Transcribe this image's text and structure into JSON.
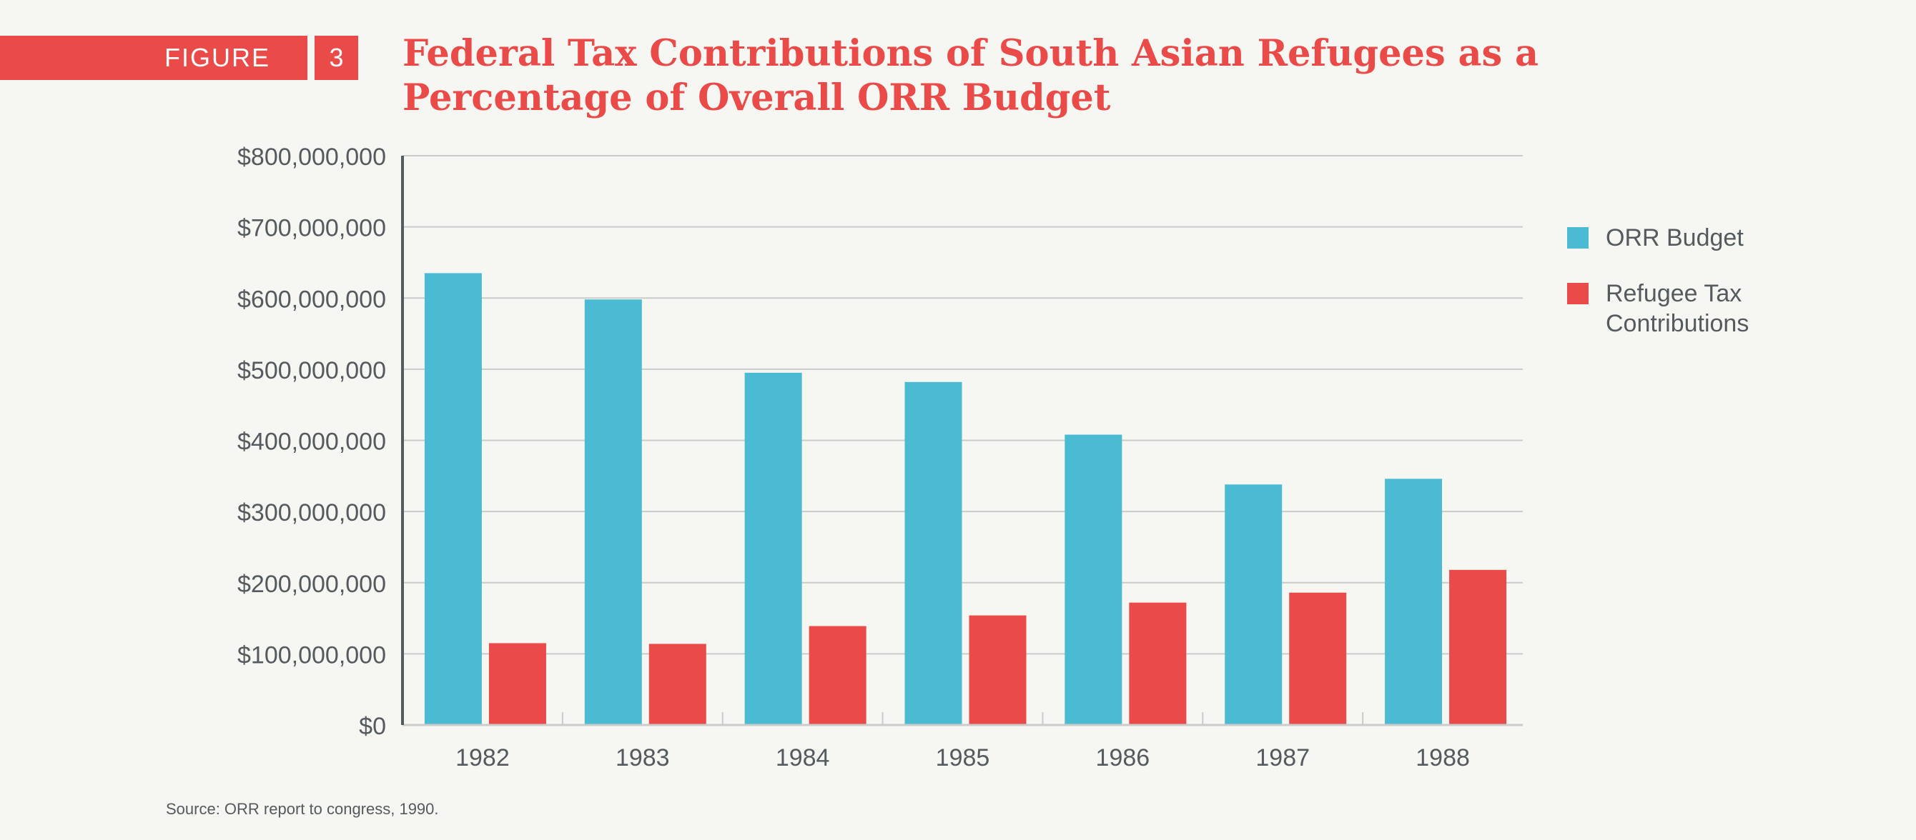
{
  "figure": {
    "label": "FIGURE",
    "number": "3"
  },
  "title": "Federal Tax Contributions of South Asian Refugees as a Percentage of Overall ORR Budget",
  "source": "Source: ORR report to congress, 1990.",
  "colors": {
    "accent": "#ea4b48",
    "orr_budget": "#4bbbd3",
    "refugee_tax": "#ea4b48",
    "text": "#555a5e",
    "grid": "#c9ccca"
  },
  "chart_data": {
    "type": "bar",
    "title": "Federal Tax Contributions of South Asian Refugees as a Percentage of Overall ORR Budget",
    "xlabel": "",
    "ylabel": "",
    "categories": [
      "1982",
      "1983",
      "1984",
      "1985",
      "1986",
      "1987",
      "1988"
    ],
    "series": [
      {
        "name": "ORR Budget",
        "values": [
          635000000,
          598000000,
          495000000,
          482000000,
          408000000,
          338000000,
          346000000
        ]
      },
      {
        "name": "Refugee Tax Contributions",
        "values": [
          115000000,
          114000000,
          139000000,
          154000000,
          172000000,
          186000000,
          218000000
        ]
      }
    ],
    "ylim": [
      0,
      800000000
    ],
    "yticks": [
      0,
      100000000,
      200000000,
      300000000,
      400000000,
      500000000,
      600000000,
      700000000,
      800000000
    ],
    "ytick_labels": [
      "$0",
      "$100,000,000",
      "$200,000,000",
      "$300,000,000",
      "$400,000,000",
      "$500,000,000",
      "$600,000,000",
      "$700,000,000",
      "$800,000,000"
    ],
    "grid": true,
    "legend_position": "right"
  },
  "legend": {
    "items": [
      {
        "label": "ORR Budget"
      },
      {
        "label": "Refugee Tax Contributions",
        "line1": "Refugee Tax",
        "line2": "Contributions"
      }
    ]
  }
}
